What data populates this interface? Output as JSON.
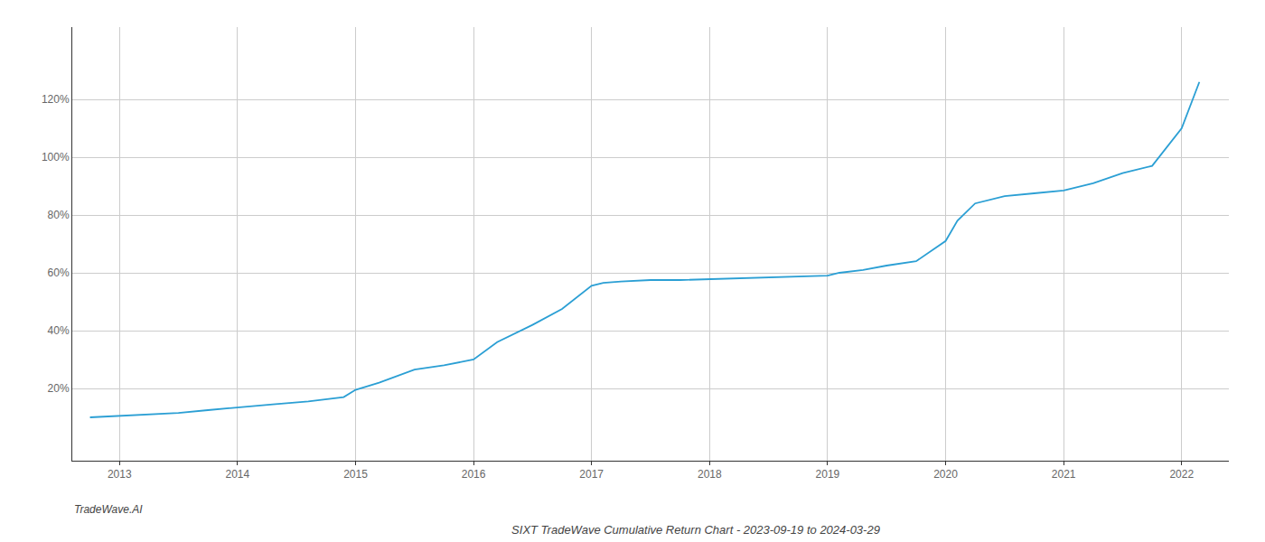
{
  "chart_data": {
    "type": "line",
    "title": "SIXT TradeWave Cumulative Return Chart - 2023-09-19 to 2024-03-29",
    "annotations": [
      "TradeWave.AI"
    ],
    "x": [
      2012.75,
      2013.0,
      2013.2,
      2013.5,
      2013.75,
      2014.0,
      2014.3,
      2014.6,
      2014.9,
      2015.0,
      2015.2,
      2015.5,
      2015.75,
      2016.0,
      2016.2,
      2016.5,
      2016.75,
      2017.0,
      2017.1,
      2017.25,
      2017.5,
      2017.75,
      2018.0,
      2018.25,
      2018.5,
      2018.75,
      2019.0,
      2019.1,
      2019.3,
      2019.5,
      2019.75,
      2020.0,
      2020.1,
      2020.25,
      2020.5,
      2020.75,
      2021.0,
      2021.25,
      2021.5,
      2021.75,
      2022.0,
      2022.15
    ],
    "values": [
      10.0,
      10.5,
      11.0,
      11.5,
      12.5,
      13.5,
      14.5,
      15.5,
      17.0,
      19.5,
      22.0,
      26.5,
      28.0,
      30.0,
      36.0,
      42.0,
      47.5,
      55.5,
      56.5,
      57.0,
      57.5,
      57.5,
      57.8,
      58.0,
      58.2,
      58.5,
      59.0,
      60.0,
      61.0,
      62.5,
      64.0,
      71.0,
      78.0,
      84.0,
      86.5,
      87.5,
      88.5,
      91.0,
      94.5,
      97.0,
      110.0,
      126.0
    ],
    "color": "#2b9fd4",
    "xlim": [
      2012.6,
      2022.4
    ],
    "ylim": [
      -5,
      145
    ],
    "xticks": [
      2013,
      2014,
      2015,
      2016,
      2017,
      2018,
      2019,
      2020,
      2021,
      2022
    ],
    "yticks": [
      {
        "value": 20,
        "label": "20%"
      },
      {
        "value": 40,
        "label": "40%"
      },
      {
        "value": 60,
        "label": "60%"
      },
      {
        "value": 80,
        "label": "80%"
      },
      {
        "value": 100,
        "label": "100%"
      },
      {
        "value": 120,
        "label": "120%"
      }
    ],
    "grid": true
  }
}
